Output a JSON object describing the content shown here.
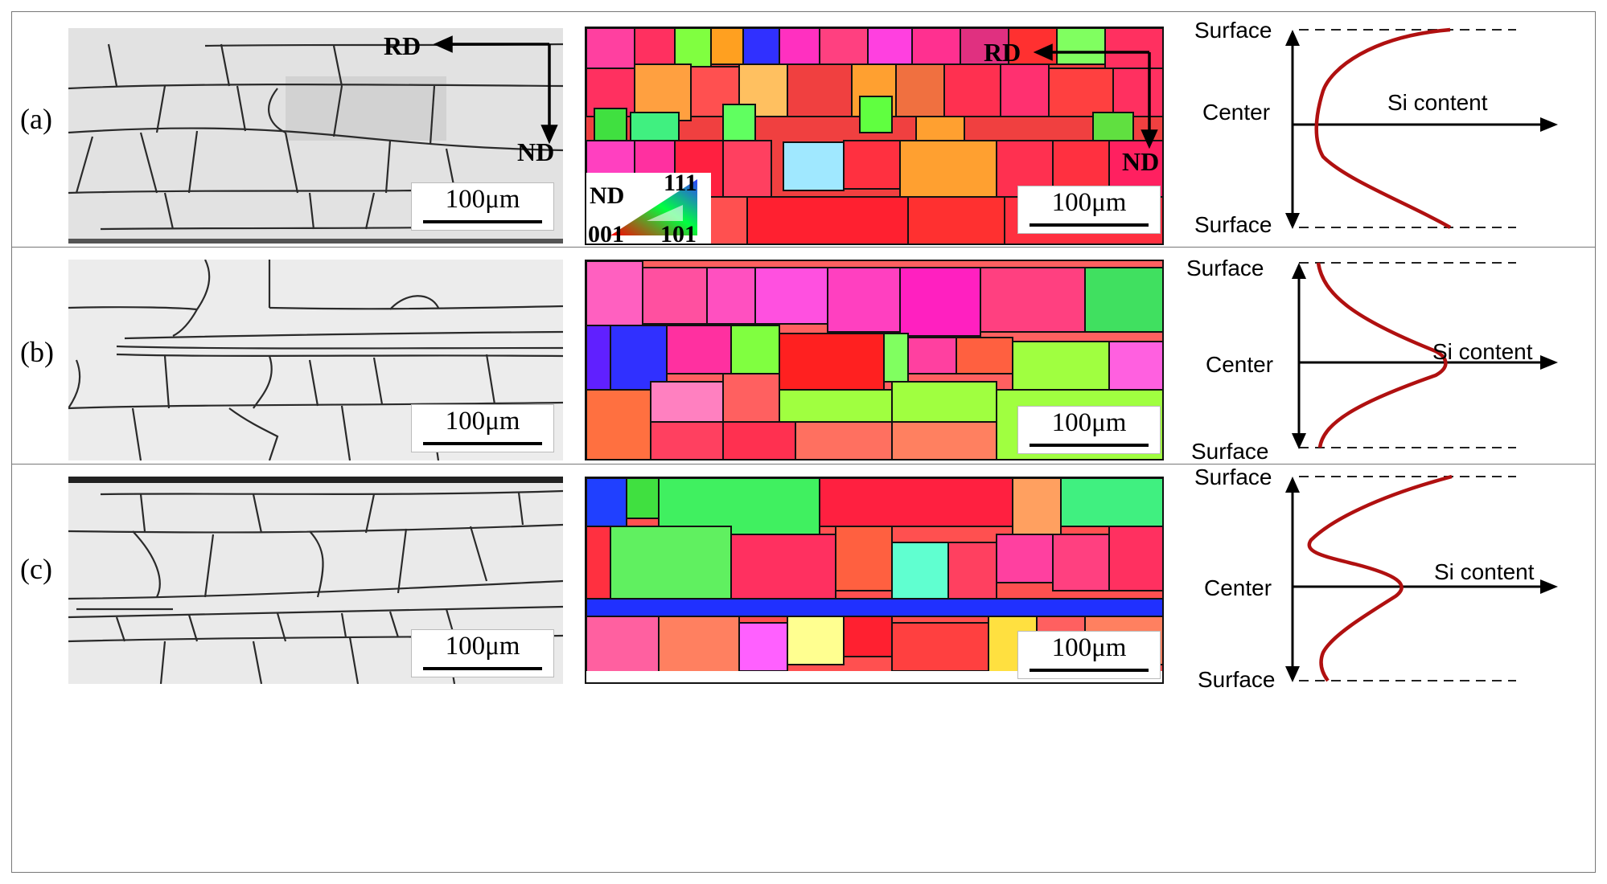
{
  "panels": [
    {
      "label": "(a)",
      "profile": "surface-rich"
    },
    {
      "label": "(b)",
      "profile": "center-rich"
    },
    {
      "label": "(c)",
      "profile": "double"
    }
  ],
  "scale_bar": "100μm",
  "orientation": {
    "rd": "RD",
    "nd": "ND"
  },
  "ipf_legend": {
    "axis": "ND",
    "top": "111",
    "left": "001",
    "right": "101"
  },
  "profile_labels": {
    "surface": "Surface",
    "center": "Center",
    "si": "Si content"
  },
  "colors": {
    "profile_curve": "#b01010",
    "grain_boundary": "#111111"
  }
}
